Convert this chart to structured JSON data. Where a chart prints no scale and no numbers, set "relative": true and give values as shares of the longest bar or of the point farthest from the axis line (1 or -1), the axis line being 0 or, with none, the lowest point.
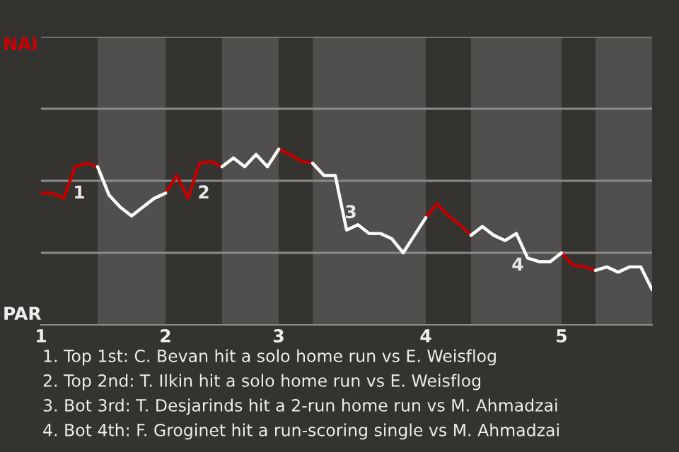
{
  "chart_data": {
    "type": "line",
    "relative": true,
    "categories": [
      "1",
      null,
      null,
      null,
      null,
      null,
      null,
      null,
      null,
      null,
      null,
      "2",
      null,
      null,
      null,
      null,
      null,
      null,
      null,
      null,
      null,
      "3",
      null,
      null,
      null,
      null,
      null,
      null,
      null,
      null,
      null,
      null,
      null,
      null,
      "4",
      null,
      null,
      null,
      null,
      null,
      null,
      null,
      null,
      null,
      null,
      null,
      "5",
      null,
      null,
      null,
      null,
      null,
      null,
      null,
      null
    ],
    "marker": "none",
    "line_style": "solid",
    "ref_lines": [
      {
        "axis": "y",
        "value": 0.41,
        "color": "#8a8a8a"
      },
      {
        "axis": "y",
        "value": 0.82,
        "color": "#8a8a8a"
      }
    ],
    "series": [
      {
        "color": "#c00000",
        "values": [
          0.75,
          0.75,
          0.72,
          0.9,
          0.92,
          0.9,
          null,
          null,
          null,
          null,
          null,
          0.75,
          0.85,
          0.72,
          0.92,
          0.93,
          0.9,
          null,
          null,
          null,
          null,
          1,
          0.97,
          0.93,
          0.92,
          null,
          null,
          null,
          null,
          null,
          null,
          null,
          null,
          null,
          0.61,
          0.69,
          0.62,
          0.57,
          0.51,
          null,
          null,
          null,
          null,
          null,
          null,
          null,
          0.41,
          0.34,
          0.33,
          0.31,
          null,
          null,
          null,
          null,
          null
        ]
      },
      {
        "color": "#ffffff",
        "values": [
          null,
          null,
          null,
          null,
          null,
          0.9,
          0.74,
          0.67,
          0.62,
          0.67,
          0.72,
          0.75,
          null,
          null,
          null,
          null,
          0.9,
          0.95,
          0.9,
          0.97,
          0.9,
          1,
          null,
          null,
          0.92,
          0.85,
          0.85,
          0.54,
          0.57,
          0.52,
          0.52,
          0.49,
          0.41,
          0.51,
          0.61,
          null,
          null,
          null,
          0.51,
          0.56,
          0.51,
          0.48,
          0.52,
          0.38,
          0.36,
          0.36,
          0.41,
          null,
          null,
          0.31,
          0.33,
          0.3,
          0.33,
          0.33,
          0.2
        ]
      }
    ],
    "annotations": [
      "NAI",
      "PAR",
      "1",
      "2",
      "3",
      "4",
      "1. Top 1st: C. Bevan hit a solo home run vs E. Weisflog",
      "2. Top 2nd: T. Ilkin hit a solo home run vs E. Weisflog",
      "3. Bot 3rd: T. Desjarinds hit a 2-run home run vs M. Ahmadzai",
      "4. Bot 4th: F. Groginet hit a run-scoring single vs M. Ahmadzai"
    ]
  }
}
